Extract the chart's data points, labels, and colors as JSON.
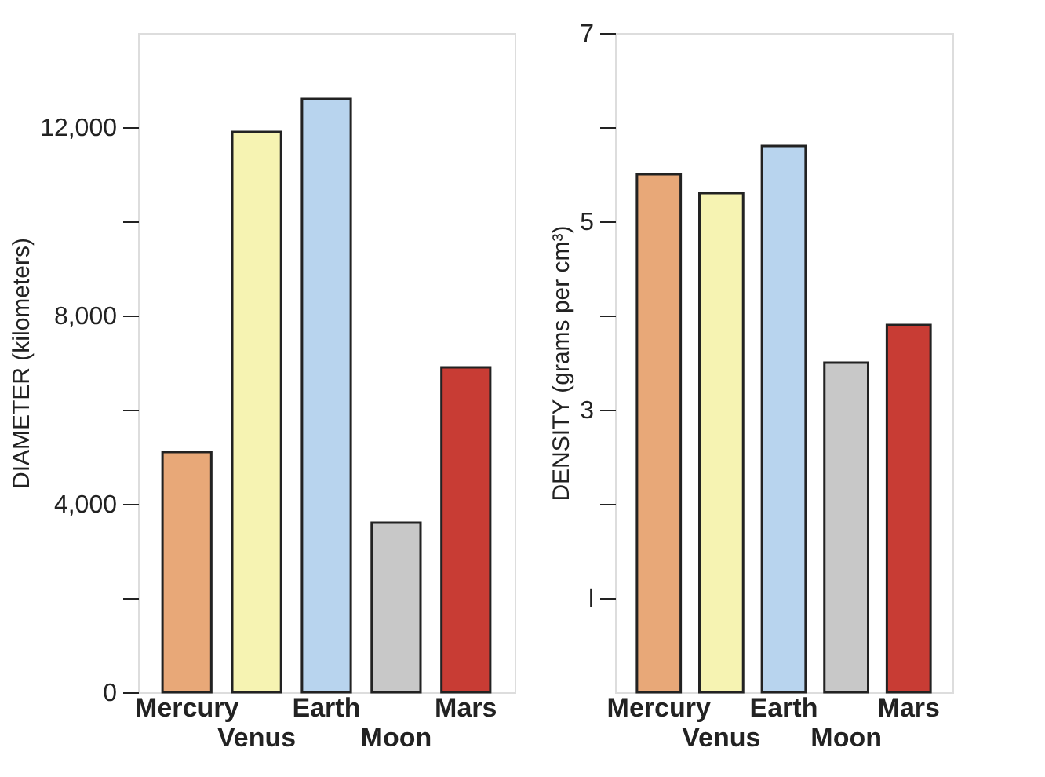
{
  "chart_data": [
    {
      "type": "bar",
      "ylabel": "DIAMETER (kilometers)",
      "categories": [
        "Mercury",
        "Venus",
        "Earth",
        "Moon",
        "Mars"
      ],
      "values": [
        5100,
        11900,
        12600,
        3600,
        6900
      ],
      "colors": [
        "#e8a878",
        "#f6f3b2",
        "#b8d4ee",
        "#c8c8c8",
        "#c83c34"
      ],
      "ylim": [
        0,
        14000
      ],
      "yticks": [
        0,
        {
          "value": 2000,
          "label": null
        },
        {
          "value": 4000,
          "label": "4,000"
        },
        {
          "value": 6000,
          "label": null
        },
        {
          "value": 8000,
          "label": "8,000"
        },
        {
          "value": 10000,
          "label": null
        },
        {
          "value": 12000,
          "label": "12,000"
        }
      ],
      "grid": false,
      "legend": false
    },
    {
      "type": "bar",
      "ylabel": "DENSITY (grams per cm³)",
      "categories": [
        "Mercury",
        "Venus",
        "Earth",
        "Moon",
        "Mars"
      ],
      "values": [
        5.5,
        5.3,
        5.8,
        3.5,
        3.9
      ],
      "colors": [
        "#e8a878",
        "#f6f3b2",
        "#b8d4ee",
        "#c8c8c8",
        "#c83c34"
      ],
      "ylim": [
        0,
        7
      ],
      "yticks": [
        {
          "value": 1,
          "label": "l"
        },
        {
          "value": 2,
          "label": null
        },
        3,
        {
          "value": 4,
          "label": null
        },
        5,
        {
          "value": 6,
          "label": null
        },
        7
      ],
      "grid": false,
      "legend": false
    }
  ]
}
